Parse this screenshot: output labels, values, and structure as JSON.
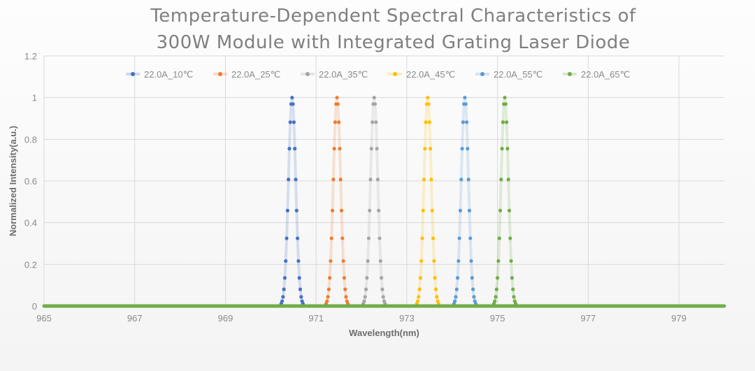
{
  "chart_data": {
    "type": "scatter",
    "title_line1": "Temperature-Dependent Spectral Characteristics of",
    "title_line2": "300W  Module with Integrated Grating Laser Diode",
    "xlabel": "Wavelength(nm)",
    "ylabel": "Normalized Intensity(a.u.)",
    "xlim": [
      965,
      980
    ],
    "ylim": [
      0,
      1.2
    ],
    "xticks": [
      965,
      967,
      969,
      971,
      973,
      975,
      977,
      979
    ],
    "yticks": [
      0,
      0.2,
      0.4,
      0.6,
      0.8,
      1,
      1.2
    ],
    "ytick_labels": [
      "0",
      "0.2",
      "0.4",
      "0.6",
      "0.8",
      "1",
      "1.2"
    ],
    "grid": true,
    "legend_position": "top",
    "baseline": {
      "x": [
        965,
        980
      ],
      "y": 0
    },
    "profile_y": [
      0.011,
      0.023,
      0.044,
      0.08,
      0.135,
      0.216,
      0.325,
      0.458,
      0.607,
      0.755,
      0.882,
      0.969,
      1,
      0.969,
      0.882,
      0.755,
      0.607,
      0.458,
      0.325,
      0.216,
      0.135,
      0.08,
      0.044,
      0.023,
      0.011
    ],
    "series": [
      {
        "name": "22.0A_10℃",
        "color": "#4472c4",
        "peak_nm": 970.47,
        "x": [
          970.23,
          970.25,
          970.27,
          970.29,
          970.31,
          970.33,
          970.35,
          970.37,
          970.39,
          970.41,
          970.43,
          970.45,
          970.47,
          970.49,
          970.51,
          970.53,
          970.55,
          970.57,
          970.59,
          970.61,
          970.63,
          970.65,
          970.67,
          970.69,
          970.71
        ]
      },
      {
        "name": "22.0A_25℃",
        "color": "#ed7d31",
        "peak_nm": 971.46,
        "x": [
          971.22,
          971.24,
          971.26,
          971.28,
          971.3,
          971.32,
          971.34,
          971.36,
          971.38,
          971.4,
          971.42,
          971.44,
          971.46,
          971.48,
          971.5,
          971.52,
          971.54,
          971.56,
          971.58,
          971.6,
          971.62,
          971.64,
          971.66,
          971.68,
          971.7
        ]
      },
      {
        "name": "22.0A_35℃",
        "color": "#a5a5a5",
        "peak_nm": 972.28,
        "x": [
          972.04,
          972.06,
          972.08,
          972.1,
          972.12,
          972.14,
          972.16,
          972.18,
          972.2,
          972.22,
          972.24,
          972.26,
          972.28,
          972.3,
          972.32,
          972.34,
          972.36,
          972.38,
          972.4,
          972.42,
          972.44,
          972.46,
          972.48,
          972.5,
          972.52
        ]
      },
      {
        "name": "22.0A_45℃",
        "color": "#ffc000",
        "peak_nm": 973.46,
        "x": [
          973.22,
          973.24,
          973.26,
          973.28,
          973.3,
          973.32,
          973.34,
          973.36,
          973.38,
          973.4,
          973.42,
          973.44,
          973.46,
          973.48,
          973.5,
          973.52,
          973.54,
          973.56,
          973.58,
          973.6,
          973.62,
          973.64,
          973.66,
          973.68,
          973.7
        ]
      },
      {
        "name": "22.0A_55℃",
        "color": "#5b9bd5",
        "peak_nm": 974.28,
        "x": [
          974.04,
          974.06,
          974.08,
          974.1,
          974.12,
          974.14,
          974.16,
          974.18,
          974.2,
          974.22,
          974.24,
          974.26,
          974.28,
          974.3,
          974.32,
          974.34,
          974.36,
          974.38,
          974.4,
          974.42,
          974.44,
          974.46,
          974.48,
          974.5,
          974.52
        ]
      },
      {
        "name": "22.0A_65℃",
        "color": "#70ad47",
        "peak_nm": 975.16,
        "x": [
          974.92,
          974.94,
          974.96,
          974.98,
          975.0,
          975.02,
          975.04,
          975.06,
          975.08,
          975.1,
          975.12,
          975.14,
          975.16,
          975.18,
          975.2,
          975.22,
          975.24,
          975.26,
          975.28,
          975.3,
          975.32,
          975.34,
          975.36,
          975.38,
          975.4
        ]
      }
    ]
  }
}
